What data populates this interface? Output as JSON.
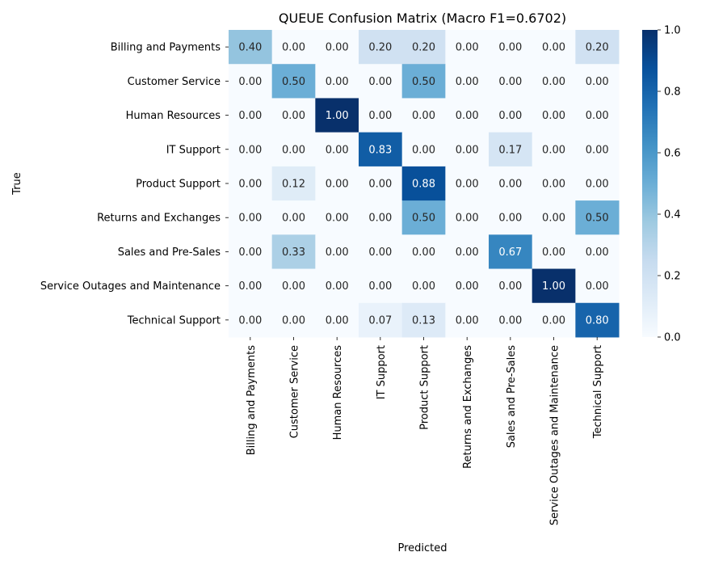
{
  "chart_data": {
    "type": "heatmap",
    "title": "QUEUE Confusion Matrix (Macro F1=0.6702)",
    "xlabel": "Predicted",
    "ylabel": "True",
    "rows": [
      "Billing and Payments",
      "Customer Service",
      "Human Resources",
      "IT Support",
      "Product Support",
      "Returns and Exchanges",
      "Sales and Pre-Sales",
      "Service Outages and Maintenance",
      "Technical Support"
    ],
    "columns": [
      "Billing and Payments",
      "Customer Service",
      "Human Resources",
      "IT Support",
      "Product Support",
      "Returns and Exchanges",
      "Sales and Pre-Sales",
      "Service Outages and Maintenance",
      "Technical Support"
    ],
    "values": [
      [
        0.4,
        0.0,
        0.0,
        0.2,
        0.2,
        0.0,
        0.0,
        0.0,
        0.2
      ],
      [
        0.0,
        0.5,
        0.0,
        0.0,
        0.5,
        0.0,
        0.0,
        0.0,
        0.0
      ],
      [
        0.0,
        0.0,
        1.0,
        0.0,
        0.0,
        0.0,
        0.0,
        0.0,
        0.0
      ],
      [
        0.0,
        0.0,
        0.0,
        0.83,
        0.0,
        0.0,
        0.17,
        0.0,
        0.0
      ],
      [
        0.0,
        0.12,
        0.0,
        0.0,
        0.88,
        0.0,
        0.0,
        0.0,
        0.0
      ],
      [
        0.0,
        0.0,
        0.0,
        0.0,
        0.5,
        0.0,
        0.0,
        0.0,
        0.5
      ],
      [
        0.0,
        0.33,
        0.0,
        0.0,
        0.0,
        0.0,
        0.67,
        0.0,
        0.0
      ],
      [
        0.0,
        0.0,
        0.0,
        0.0,
        0.0,
        0.0,
        0.0,
        1.0,
        0.0
      ],
      [
        0.0,
        0.0,
        0.0,
        0.07,
        0.13,
        0.0,
        0.0,
        0.0,
        0.8
      ]
    ],
    "value_format": "0.00",
    "colorbar": {
      "min": 0.0,
      "max": 1.0,
      "ticks": [
        "0.0",
        "0.2",
        "0.4",
        "0.6",
        "0.8",
        "1.0"
      ],
      "colormap": "Blues"
    },
    "grid": false,
    "legend": "none"
  }
}
